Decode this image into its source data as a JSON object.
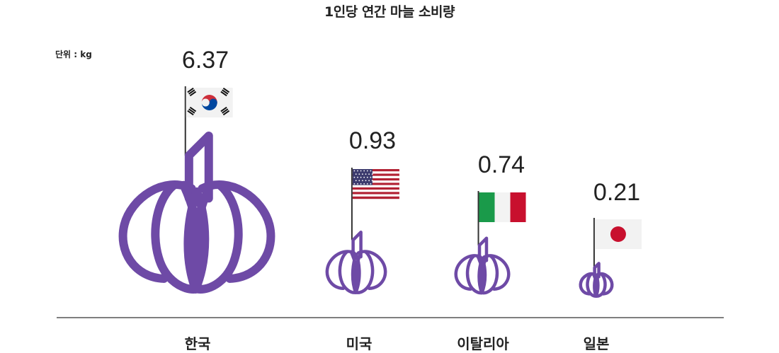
{
  "chart_data": {
    "type": "bar",
    "title": "1인당 연간 마늘 소비량",
    "unit_label": "단위 : kg",
    "categories": [
      "한국",
      "미국",
      "이탈리아",
      "일본"
    ],
    "values": [
      6.37,
      0.93,
      0.74,
      0.21
    ],
    "value_labels": [
      "6.37",
      "0.93",
      "0.74",
      "0.21"
    ],
    "flags": [
      "korea-flag",
      "usa-flag",
      "italy-flag",
      "japan-flag"
    ],
    "mark_icon": "garlic-icon",
    "mark_color": "#6e4aa6"
  }
}
